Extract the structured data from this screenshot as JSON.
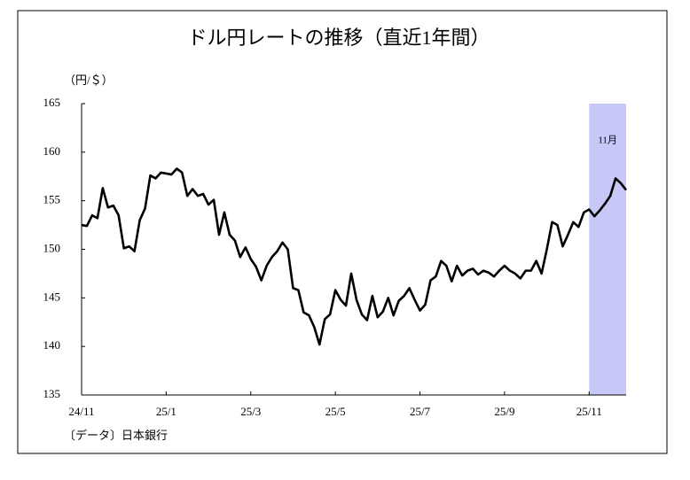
{
  "chart_data": {
    "type": "line",
    "title": "ドル円レートの推移（直近1年間）",
    "y_label": "（円/＄）",
    "source": "〔データ〕日本銀行",
    "values": [
      152.5,
      152.4,
      153.5,
      153.2,
      156.3,
      154.3,
      154.5,
      153.5,
      150.1,
      150.3,
      149.8,
      153.0,
      154.2,
      157.6,
      157.3,
      157.9,
      157.8,
      157.7,
      158.3,
      157.9,
      155.5,
      156.2,
      155.5,
      155.7,
      154.6,
      155.1,
      151.5,
      153.8,
      151.5,
      150.9,
      149.2,
      150.2,
      149.0,
      148.2,
      146.8,
      148.3,
      149.2,
      149.8,
      150.7,
      150.0,
      146.0,
      145.8,
      143.5,
      143.2,
      142.0,
      140.2,
      142.8,
      143.3,
      145.8,
      144.8,
      144.2,
      147.5,
      144.8,
      143.3,
      142.7,
      145.2,
      143.0,
      143.6,
      145.0,
      143.2,
      144.7,
      145.2,
      146.0,
      144.8,
      143.7,
      144.3,
      146.8,
      147.2,
      148.8,
      148.3,
      146.7,
      148.3,
      147.3,
      147.8,
      148.0,
      147.4,
      147.8,
      147.6,
      147.2,
      147.8,
      148.3,
      147.8,
      147.5,
      147.0,
      147.8,
      147.8,
      148.8,
      147.5,
      150.0,
      152.8,
      152.5,
      150.3,
      151.5,
      152.8,
      152.3,
      153.8,
      154.1,
      153.4,
      154.0,
      154.7,
      155.5,
      157.3,
      156.8,
      156.1
    ],
    "color": "#000000",
    "xlim": [
      0,
      103
    ],
    "xticks": [
      {
        "value": 0,
        "label": "24/11"
      },
      {
        "value": 16,
        "label": "25/1"
      },
      {
        "value": 32,
        "label": "25/3"
      },
      {
        "value": 48,
        "label": "25/5"
      },
      {
        "value": 64,
        "label": "25/7"
      },
      {
        "value": 80,
        "label": "25/9"
      },
      {
        "value": 96,
        "label": "25/11"
      }
    ],
    "ylim": [
      135,
      165
    ],
    "yticks": [
      135,
      140,
      145,
      150,
      155,
      160,
      165
    ],
    "highlight": {
      "xlim": [
        96,
        103
      ],
      "label": "11月",
      "color": "#c8c8f8"
    },
    "grid": false
  }
}
